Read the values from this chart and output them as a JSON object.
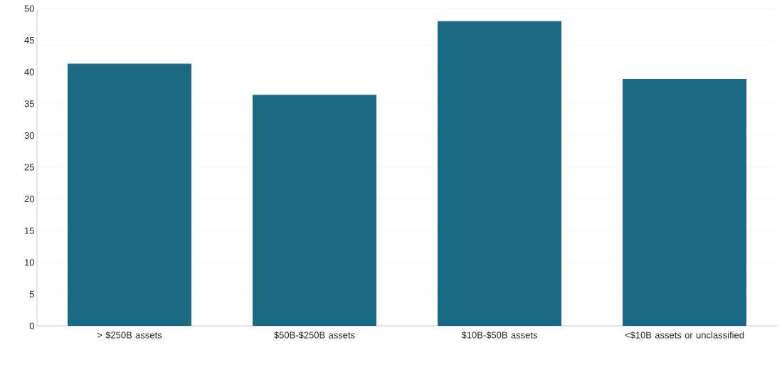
{
  "chart_data": {
    "type": "bar",
    "categories": [
      "> $250B assets",
      "$50B-$250B assets",
      "$10B-$50B assets",
      "<$10B assets or unclassified"
    ],
    "values": [
      41.3,
      36.4,
      48.0,
      38.9
    ],
    "color": "#1b6a84",
    "ylim": [
      0,
      50
    ],
    "yticks": [
      0,
      5,
      10,
      15,
      20,
      25,
      30,
      35,
      40,
      45,
      50
    ],
    "grid": "y"
  }
}
